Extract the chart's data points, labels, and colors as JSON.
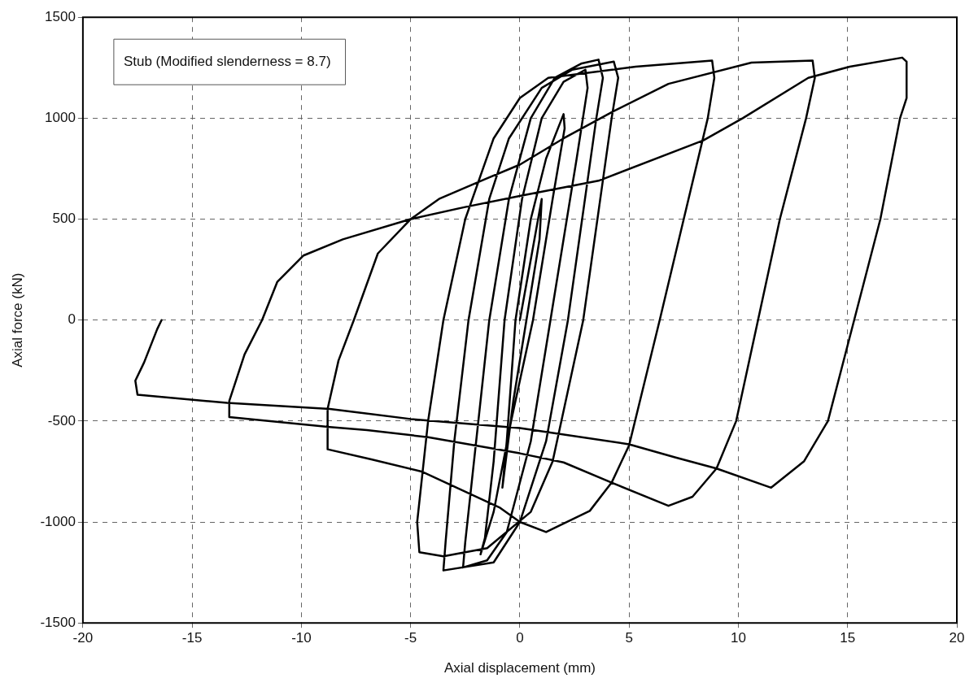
{
  "chart_data": {
    "type": "line",
    "xlabel": "Axial displacement (mm)",
    "ylabel": "Axial force (kN)",
    "annotations": [
      "Stub (Modified slenderness = 8.7)"
    ],
    "xlim": [
      -20,
      20
    ],
    "xticks": [
      -20,
      -15,
      -10,
      -5,
      0,
      5,
      10,
      15,
      20
    ],
    "ylim": [
      -1500,
      1500
    ],
    "yticks": [
      -1500,
      -1000,
      -500,
      0,
      500,
      1000,
      1500
    ],
    "grid": true,
    "legend": false,
    "marker": "none",
    "line_style": "solid",
    "series": [
      {
        "color": "#000000",
        "x": [
          0,
          0.5,
          1.0,
          0.9,
          0.3,
          -0.3,
          -0.8,
          -0.6,
          -0.2,
          0.5,
          1.2,
          2.0,
          2.05,
          1.5,
          0.6,
          -0.4,
          -1.2,
          -1.8,
          -1.6,
          -1.2,
          -0.7,
          0.1,
          1.0,
          2.0,
          3.0,
          3.1,
          2.6,
          1.4,
          0.5,
          -0.6,
          -1.5,
          -2.6,
          -2.5,
          -2.0,
          -1.4,
          -0.5,
          0.5,
          1.6,
          2.8,
          3.6,
          3.8,
          3.5,
          2.2,
          1.2,
          0.0,
          -1.2,
          -3.5,
          -3.4,
          -3.0,
          -2.35,
          -1.4,
          -0.5,
          1.0,
          2.4,
          4.3,
          4.5,
          4.2,
          2.9,
          1.5,
          0.5,
          -1.5,
          -3.5,
          -4.6,
          -4.7,
          -4.5,
          -4.2,
          -3.5,
          -2.5,
          -1.2,
          0,
          1.3,
          5.3,
          8.8,
          8.9,
          8.6,
          7.5,
          6.4,
          5.0,
          4.2,
          3.2,
          1.2,
          0,
          -0.9,
          -4.5,
          -6.8,
          -8.8,
          -8.8,
          -8.3,
          -7.6,
          -6.5,
          -5.0,
          -3.7,
          -1.55,
          0,
          2.0,
          4.3,
          6.8,
          10.6,
          13.4,
          13.5,
          13.1,
          11.9,
          10.9,
          9.9,
          9.0,
          7.9,
          6.8,
          4.2,
          2.0,
          0,
          -4.2,
          -7.0,
          -8.7,
          -13.3,
          -13.3,
          -12.6,
          -11.8,
          -11.1,
          -9.9,
          -8.1,
          -5.0,
          -2.5,
          0,
          3.6,
          8.4,
          10.2,
          13.2,
          15.1,
          17.5,
          17.7,
          17.7,
          17.4,
          16.5,
          15.3,
          14.1,
          13.0,
          11.5,
          9.0,
          7.1,
          5.0,
          0,
          -5.0,
          -8.7,
          -13.4,
          -17.5,
          -17.6,
          -17.2,
          -16.6,
          -16.4
        ],
        "values": [
          0,
          300,
          600,
          400,
          0,
          -400,
          -830,
          -600,
          0,
          500,
          800,
          1020,
          950,
          600,
          0,
          -500,
          -950,
          -1160,
          -1080,
          -700,
          0,
          600,
          1000,
          1180,
          1240,
          1150,
          800,
          0,
          -600,
          -1050,
          -1190,
          -1225,
          -1100,
          -600,
          0,
          600,
          1000,
          1200,
          1270,
          1290,
          1200,
          1000,
          0,
          -600,
          -1000,
          -1200,
          -1240,
          -1100,
          -600,
          0,
          600,
          900,
          1150,
          1240,
          1280,
          1200,
          1000,
          0,
          -700,
          -950,
          -1130,
          -1170,
          -1150,
          -1000,
          -800,
          -500,
          0,
          500,
          900,
          1100,
          1200,
          1255,
          1285,
          1200,
          1000,
          500,
          0,
          -620,
          -805,
          -945,
          -1050,
          -1000,
          -930,
          -750,
          -690,
          -640,
          -440,
          -200,
          0,
          330,
          500,
          600,
          700,
          770,
          900,
          1035,
          1170,
          1275,
          1285,
          1200,
          1000,
          500,
          0,
          -500,
          -735,
          -875,
          -920,
          -805,
          -705,
          -660,
          -580,
          -545,
          -530,
          -480,
          -400,
          -170,
          0,
          190,
          320,
          400,
          500,
          560,
          615,
          690,
          890,
          1000,
          1200,
          1255,
          1300,
          1280,
          1100,
          1000,
          500,
          0,
          -500,
          -700,
          -830,
          -735,
          -680,
          -615,
          -535,
          -490,
          -440,
          -410,
          -370,
          -300,
          -210,
          -45,
          0
        ]
      }
    ]
  }
}
